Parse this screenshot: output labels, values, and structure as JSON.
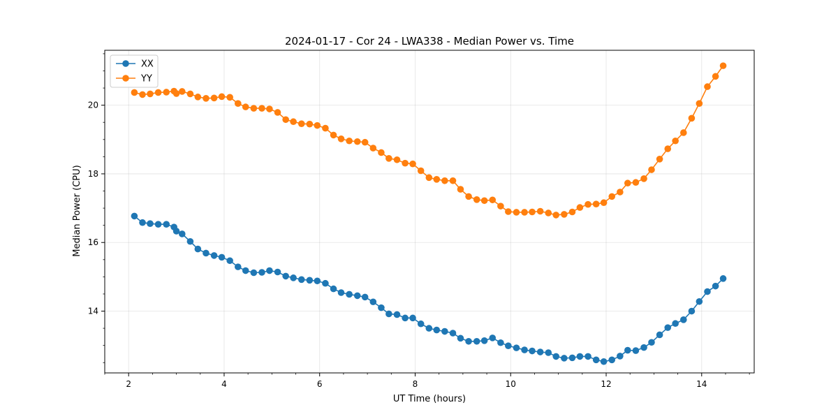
{
  "chart_data": {
    "type": "line",
    "title": "2024-01-17 - Cor 24 - LWA338 - Median Power vs. Time",
    "xlabel": "UT Time (hours)",
    "ylabel": "Median Power (CPU)",
    "xlim": [
      1.5,
      15.1
    ],
    "ylim": [
      12.2,
      21.6
    ],
    "xticks": [
      2,
      4,
      6,
      8,
      10,
      12,
      14
    ],
    "yticks": [
      14,
      16,
      18,
      20
    ],
    "grid": true,
    "legend_position": "top-left",
    "series": [
      {
        "name": "XX",
        "color": "#1f77b4",
        "points": [
          [
            2.12,
            16.77
          ],
          [
            2.29,
            16.58
          ],
          [
            2.45,
            16.55
          ],
          [
            2.62,
            16.53
          ],
          [
            2.79,
            16.53
          ],
          [
            2.95,
            16.45
          ],
          [
            3.0,
            16.33
          ],
          [
            3.12,
            16.25
          ],
          [
            3.29,
            16.03
          ],
          [
            3.45,
            15.81
          ],
          [
            3.62,
            15.69
          ],
          [
            3.79,
            15.62
          ],
          [
            3.95,
            15.57
          ],
          [
            4.12,
            15.47
          ],
          [
            4.29,
            15.29
          ],
          [
            4.45,
            15.18
          ],
          [
            4.62,
            15.12
          ],
          [
            4.79,
            15.13
          ],
          [
            4.95,
            15.18
          ],
          [
            5.12,
            15.14
          ],
          [
            5.29,
            15.02
          ],
          [
            5.45,
            14.97
          ],
          [
            5.62,
            14.92
          ],
          [
            5.79,
            14.9
          ],
          [
            5.95,
            14.88
          ],
          [
            6.12,
            14.81
          ],
          [
            6.29,
            14.65
          ],
          [
            6.45,
            14.54
          ],
          [
            6.62,
            14.49
          ],
          [
            6.79,
            14.45
          ],
          [
            6.95,
            14.41
          ],
          [
            7.12,
            14.27
          ],
          [
            7.29,
            14.1
          ],
          [
            7.45,
            13.92
          ],
          [
            7.62,
            13.9
          ],
          [
            7.79,
            13.8
          ],
          [
            7.95,
            13.8
          ],
          [
            8.12,
            13.63
          ],
          [
            8.29,
            13.5
          ],
          [
            8.45,
            13.45
          ],
          [
            8.62,
            13.41
          ],
          [
            8.79,
            13.36
          ],
          [
            8.95,
            13.21
          ],
          [
            9.12,
            13.12
          ],
          [
            9.29,
            13.12
          ],
          [
            9.45,
            13.14
          ],
          [
            9.62,
            13.22
          ],
          [
            9.79,
            13.08
          ],
          [
            9.95,
            12.99
          ],
          [
            10.12,
            12.93
          ],
          [
            10.29,
            12.87
          ],
          [
            10.45,
            12.84
          ],
          [
            10.62,
            12.81
          ],
          [
            10.79,
            12.79
          ],
          [
            10.95,
            12.68
          ],
          [
            11.12,
            12.63
          ],
          [
            11.29,
            12.64
          ],
          [
            11.45,
            12.68
          ],
          [
            11.62,
            12.68
          ],
          [
            11.79,
            12.58
          ],
          [
            11.95,
            12.53
          ],
          [
            12.12,
            12.58
          ],
          [
            12.29,
            12.69
          ],
          [
            12.45,
            12.86
          ],
          [
            12.62,
            12.85
          ],
          [
            12.79,
            12.94
          ],
          [
            12.95,
            13.09
          ],
          [
            13.12,
            13.31
          ],
          [
            13.29,
            13.52
          ],
          [
            13.45,
            13.64
          ],
          [
            13.62,
            13.75
          ],
          [
            13.79,
            14.0
          ],
          [
            13.95,
            14.28
          ],
          [
            14.12,
            14.57
          ],
          [
            14.29,
            14.73
          ],
          [
            14.45,
            14.95
          ]
        ]
      },
      {
        "name": "YY",
        "color": "#ff7f0e",
        "points": [
          [
            2.12,
            20.37
          ],
          [
            2.29,
            20.31
          ],
          [
            2.45,
            20.33
          ],
          [
            2.62,
            20.37
          ],
          [
            2.79,
            20.38
          ],
          [
            2.95,
            20.41
          ],
          [
            3.0,
            20.34
          ],
          [
            3.12,
            20.4
          ],
          [
            3.29,
            20.33
          ],
          [
            3.45,
            20.24
          ],
          [
            3.62,
            20.2
          ],
          [
            3.79,
            20.21
          ],
          [
            3.95,
            20.25
          ],
          [
            4.12,
            20.23
          ],
          [
            4.29,
            20.05
          ],
          [
            4.45,
            19.95
          ],
          [
            4.62,
            19.91
          ],
          [
            4.79,
            19.91
          ],
          [
            4.95,
            19.89
          ],
          [
            5.12,
            19.79
          ],
          [
            5.29,
            19.58
          ],
          [
            5.45,
            19.52
          ],
          [
            5.62,
            19.46
          ],
          [
            5.79,
            19.45
          ],
          [
            5.95,
            19.41
          ],
          [
            6.12,
            19.33
          ],
          [
            6.29,
            19.13
          ],
          [
            6.45,
            19.02
          ],
          [
            6.62,
            18.96
          ],
          [
            6.79,
            18.94
          ],
          [
            6.95,
            18.92
          ],
          [
            7.12,
            18.75
          ],
          [
            7.29,
            18.62
          ],
          [
            7.45,
            18.45
          ],
          [
            7.62,
            18.41
          ],
          [
            7.79,
            18.31
          ],
          [
            7.95,
            18.29
          ],
          [
            8.12,
            18.09
          ],
          [
            8.29,
            17.89
          ],
          [
            8.45,
            17.84
          ],
          [
            8.62,
            17.8
          ],
          [
            8.79,
            17.8
          ],
          [
            8.95,
            17.55
          ],
          [
            9.12,
            17.34
          ],
          [
            9.29,
            17.25
          ],
          [
            9.45,
            17.22
          ],
          [
            9.62,
            17.24
          ],
          [
            9.79,
            17.06
          ],
          [
            9.95,
            16.9
          ],
          [
            10.12,
            16.88
          ],
          [
            10.29,
            16.88
          ],
          [
            10.45,
            16.89
          ],
          [
            10.62,
            16.91
          ],
          [
            10.79,
            16.86
          ],
          [
            10.95,
            16.8
          ],
          [
            11.12,
            16.82
          ],
          [
            11.29,
            16.89
          ],
          [
            11.45,
            17.02
          ],
          [
            11.62,
            17.11
          ],
          [
            11.79,
            17.12
          ],
          [
            11.95,
            17.16
          ],
          [
            12.12,
            17.34
          ],
          [
            12.29,
            17.47
          ],
          [
            12.45,
            17.73
          ],
          [
            12.62,
            17.75
          ],
          [
            12.79,
            17.86
          ],
          [
            12.95,
            18.12
          ],
          [
            13.12,
            18.43
          ],
          [
            13.29,
            18.73
          ],
          [
            13.45,
            18.96
          ],
          [
            13.62,
            19.2
          ],
          [
            13.79,
            19.62
          ],
          [
            13.95,
            20.05
          ],
          [
            14.12,
            20.54
          ],
          [
            14.29,
            20.84
          ],
          [
            14.45,
            21.15
          ]
        ]
      }
    ]
  }
}
